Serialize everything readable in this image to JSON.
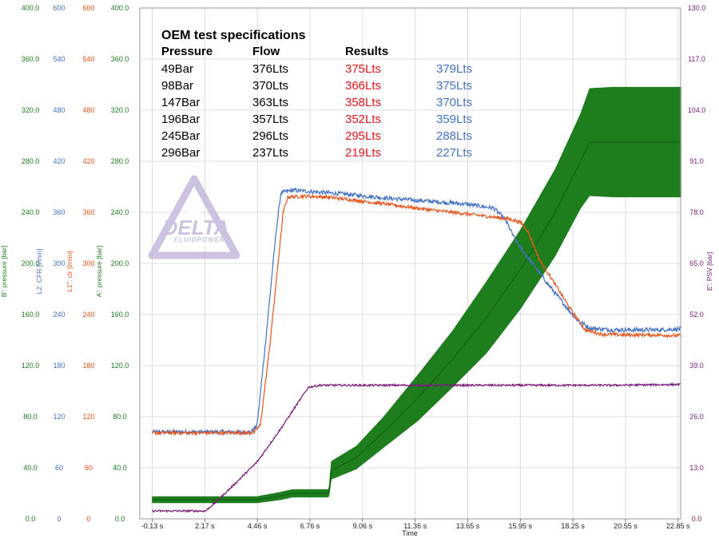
{
  "colors": {
    "green": "#1e7e1e",
    "blue": "#4472c4",
    "orange": "#e8541c",
    "purple": "#7b1a7b",
    "red": "#e8141c",
    "grid": "#dcdcdc",
    "logo": "#c6b8dc"
  },
  "logo": {
    "main": "DELTA",
    "sub": "FLUIDPOWER"
  },
  "spec_table": {
    "title": "OEM test specifications",
    "headers": {
      "pressure": "Pressure",
      "flow": "Flow",
      "results": "Results"
    },
    "rows": [
      {
        "pressure": "49Bar",
        "flow": "376Lts",
        "result_red": "375Lts",
        "result_blue": "379Lts"
      },
      {
        "pressure": "98Bar",
        "flow": "370Lts",
        "result_red": "366Lts",
        "result_blue": "375Lts"
      },
      {
        "pressure": "147Bar",
        "flow": "363Lts",
        "result_red": "358Lts",
        "result_blue": "370Lts"
      },
      {
        "pressure": "196Bar",
        "flow": "357Lts",
        "result_red": "352Lts",
        "result_blue": "359Lts"
      },
      {
        "pressure": "245Bar",
        "flow": "296Lts",
        "result_red": "295Lts",
        "result_blue": "288Lts"
      },
      {
        "pressure": "296Bar",
        "flow": "237Lts",
        "result_red": "219Lts",
        "result_blue": "227Lts"
      }
    ]
  },
  "chart_data": {
    "type": "line",
    "xlabel": "Time",
    "x_tick_labels": [
      "-0.13 s",
      "2.17 s",
      "4.46 s",
      "6.76 s",
      "9.06 s",
      "11.36 s",
      "13.65 s",
      "15.95 s",
      "18.25 s",
      "20.55 s",
      "22.85 s"
    ],
    "xlim": [
      -0.13,
      23.0
    ],
    "grid": true,
    "left_axes": [
      {
        "id": "b",
        "label": "B': pressure [bar]",
        "color": "#1e7e1e",
        "ticks": [
          "0.0",
          "40.0",
          "80.0",
          "120.0",
          "160.0",
          "200.0",
          "240.0",
          "280.0",
          "320.0",
          "360.0",
          "400.0"
        ]
      },
      {
        "id": "l2",
        "label": "L2: CFR [l/min]",
        "color": "#4472c4",
        "ticks": [
          "0",
          "60",
          "120",
          "180",
          "240",
          "300",
          "360",
          "420",
          "480",
          "540",
          "600"
        ]
      },
      {
        "id": "l1",
        "label": "L1'': clr [l/min]",
        "color": "#e8541c",
        "ticks": [
          "0",
          "60",
          "120",
          "180",
          "240",
          "300",
          "360",
          "420",
          "480",
          "540",
          "600"
        ]
      },
      {
        "id": "a",
        "label": "A': pressure [bar]",
        "color": "#1e7e1e",
        "ticks": [
          "0.0",
          "40.0",
          "80.0",
          "120.0",
          "160.0",
          "200.0",
          "240.0",
          "280.0",
          "320.0",
          "360.0",
          "400.0"
        ]
      }
    ],
    "right_axis": {
      "id": "e",
      "label": "E': PSV [bar]",
      "color": "#7b1a7b",
      "ticks": [
        "0.0",
        "13.0",
        "26.0",
        "39.0",
        "52.0",
        "65.0",
        "78.0",
        "91.0",
        "104.0",
        "117.0",
        "130.0"
      ]
    },
    "series": [
      {
        "id": "l2",
        "color": "#4472c4",
        "axis": "l2",
        "ylim": [
          0,
          600
        ],
        "noise": 2.5,
        "x": [
          -0.13,
          4.2,
          4.46,
          4.8,
          5.3,
          5.5,
          6.0,
          7.0,
          8.5,
          10.0,
          12.0,
          13.5,
          14.8,
          15.3,
          15.8,
          16.5,
          17.2,
          17.8,
          18.4,
          19.0,
          20.0,
          21.0,
          22.0,
          23.0
        ],
        "y": [
          102,
          102,
          110,
          200,
          340,
          383,
          386,
          384,
          381,
          377,
          373,
          370,
          365,
          352,
          325,
          300,
          275,
          255,
          235,
          224,
          222,
          222,
          222,
          223
        ]
      },
      {
        "id": "l1",
        "color": "#e8541c",
        "axis": "l1",
        "ylim": [
          0,
          600
        ],
        "noise": 2.0,
        "x": [
          -0.13,
          4.3,
          4.6,
          5.0,
          5.6,
          5.8,
          6.5,
          7.5,
          8.5,
          10.0,
          12.0,
          14.0,
          15.5,
          16.0,
          16.3,
          16.8,
          17.5,
          18.2,
          18.8,
          19.5,
          20.5,
          22.0,
          23.0
        ],
        "y": [
          101,
          101,
          110,
          200,
          360,
          378,
          379,
          378,
          375,
          370,
          363,
          357,
          352,
          348,
          338,
          305,
          275,
          245,
          222,
          217,
          216,
          216,
          215
        ]
      },
      {
        "id": "e",
        "color": "#7b1a7b",
        "axis": "e",
        "ylim": [
          0,
          130
        ],
        "noise": 0.25,
        "x": [
          -0.13,
          2.2,
          2.7,
          3.5,
          4.46,
          5.5,
          6.7,
          7.2,
          8.5,
          12.0,
          16.0,
          20.0,
          23.0
        ],
        "y": [
          2.0,
          2.0,
          4.5,
          9.0,
          14.5,
          23.0,
          33.5,
          34.0,
          34.0,
          34.0,
          34.0,
          34.0,
          34.2
        ]
      },
      {
        "id": "b",
        "color": "#1e7e1e",
        "axis": "b",
        "ylim": [
          0,
          400
        ],
        "band": true,
        "x": [
          -0.13,
          4.46,
          5.5,
          6.0,
          7.6,
          7.7,
          8.8,
          10.0,
          11.5,
          13.0,
          14.5,
          16.0,
          17.5,
          18.6,
          19.0,
          20.0,
          21.0,
          23.0
        ],
        "y": [
          15,
          15,
          18,
          20,
          20,
          38,
          48,
          68,
          95,
          125,
          158,
          196,
          240,
          280,
          295,
          295,
          295,
          295
        ],
        "spread": [
          2.5,
          2.5,
          3,
          3,
          3,
          7,
          9,
          12,
          18,
          22,
          28,
          31,
          34,
          37,
          42,
          43,
          43,
          43
        ]
      }
    ]
  }
}
